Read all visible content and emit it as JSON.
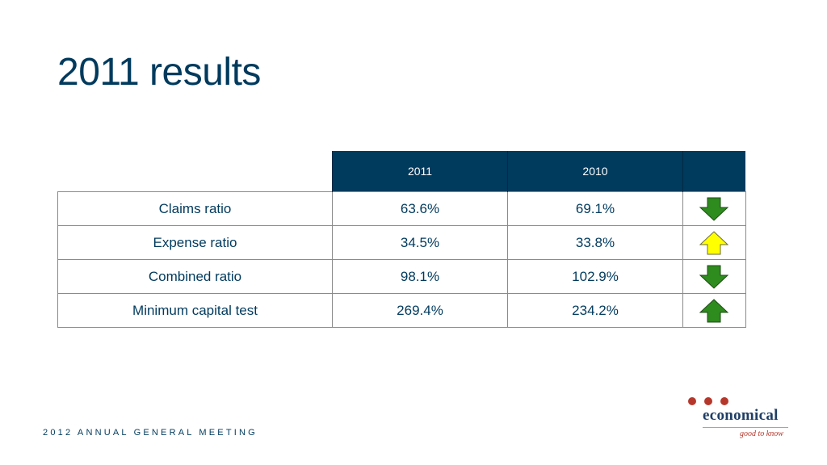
{
  "slide": {
    "title": "2011 results",
    "footer": "2012 ANNUAL GENERAL MEETING"
  },
  "table": {
    "headers": [
      "2011",
      "2010"
    ],
    "rows": [
      {
        "metric": "Claims ratio",
        "y2011": "63.6%",
        "y2010": "69.1%",
        "trend_icon": "arrow-down-icon",
        "trend_color": "#2e8b1e"
      },
      {
        "metric": "Expense ratio",
        "y2011": "34.5%",
        "y2010": "33.8%",
        "trend_icon": "arrow-up-icon",
        "trend_color": "#ffff00"
      },
      {
        "metric": "Combined ratio",
        "y2011": "98.1%",
        "y2010": "102.9%",
        "trend_icon": "arrow-down-icon",
        "trend_color": "#2e8b1e"
      },
      {
        "metric": "Minimum capital test",
        "y2011": "269.4%",
        "y2010": "234.2%",
        "trend_icon": "arrow-up-icon",
        "trend_color": "#2e8b1e"
      }
    ]
  },
  "logo": {
    "name": "economical",
    "tagline": "good to know",
    "dot_color": "#b5372b"
  },
  "colors": {
    "primary": "#003a5d",
    "header_bg": "#003a5d",
    "border": "#8a8a8a"
  }
}
